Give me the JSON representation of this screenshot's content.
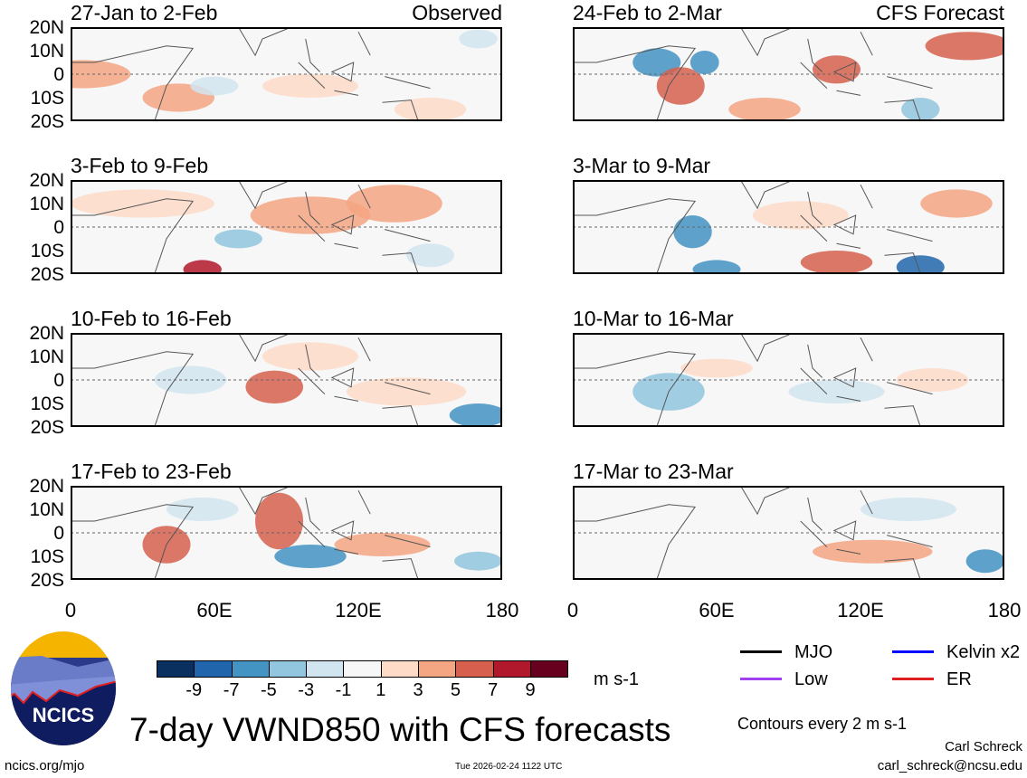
{
  "panels": [
    {
      "title": "27-Jan to 2-Feb",
      "tag": "Observed"
    },
    {
      "title": "24-Feb to 2-Mar",
      "tag": "CFS Forecast"
    },
    {
      "title": "3-Feb to 9-Feb"
    },
    {
      "title": "3-Mar to 9-Mar"
    },
    {
      "title": "10-Feb to 16-Feb"
    },
    {
      "title": "10-Mar to 16-Mar"
    },
    {
      "title": "17-Feb to 23-Feb"
    },
    {
      "title": "17-Mar to 23-Mar"
    }
  ],
  "y_ticks": [
    "20N",
    "10N",
    "0",
    "10S",
    "20S"
  ],
  "x_ticks": [
    "0",
    "60E",
    "120E",
    "180"
  ],
  "colorbar": {
    "colors": [
      "#0a3060",
      "#2166ac",
      "#4393c3",
      "#92c5de",
      "#d1e5f0",
      "#f7f7f7",
      "#fddbc7",
      "#f4a582",
      "#d6604d",
      "#b2182b",
      "#67001f"
    ],
    "labels": [
      "-9",
      "-7",
      "-5",
      "-3",
      "-1",
      "1",
      "3",
      "5",
      "7",
      "9"
    ],
    "units": "m s-1"
  },
  "legend": [
    {
      "label": "MJO",
      "color": "#000000"
    },
    {
      "label": "Kelvin x2",
      "color": "#0000ff"
    },
    {
      "label": "Low",
      "color": "#a040f0"
    },
    {
      "label": "ER",
      "color": "#e02020"
    }
  ],
  "contour_note": "Contours every 2 m s-1",
  "main_title": "7-day VWND850 with CFS forecasts",
  "logo_text": "NCICS",
  "footer": {
    "url": "ncics.org/mjo",
    "timestamp": "Tue 2026-02-24 1122 UTC",
    "author": "Carl Schreck",
    "email": "carl_schreck@ncsu.edu"
  }
}
